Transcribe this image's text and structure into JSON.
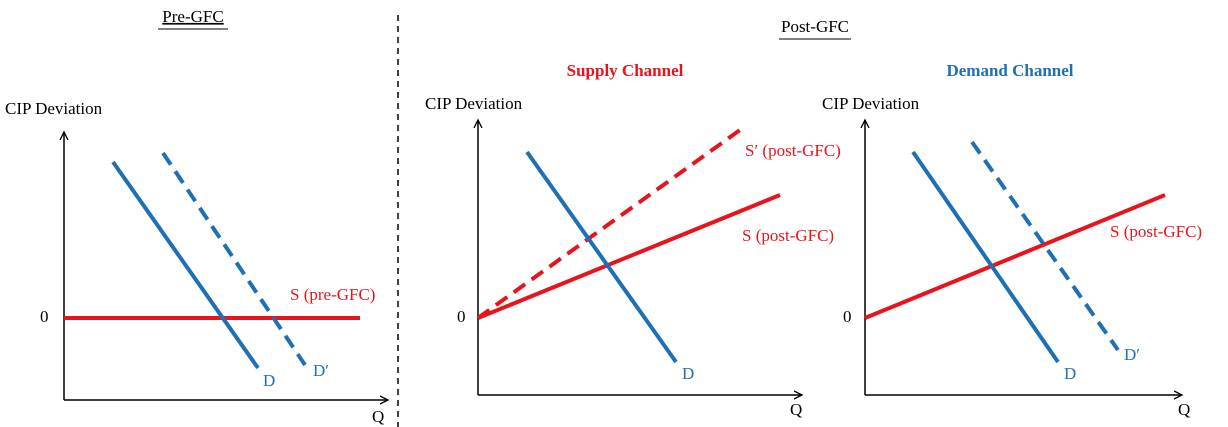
{
  "pre_gfc": {
    "title": "Pre-GFC",
    "y_axis_label": "CIP Deviation",
    "zero_label": "0",
    "x_axis_label": "Q",
    "supply_label": "S (pre-GFC)",
    "demand_label": "D",
    "demand_shift_label": "D′"
  },
  "post_gfc": {
    "title": "Post-GFC",
    "supply_channel": {
      "title": "Supply Channel",
      "y_axis_label": "CIP Deviation",
      "zero_label": "0",
      "x_axis_label": "Q",
      "supply_shift_label": "S′ (post-GFC)",
      "supply_label": "S (post-GFC)",
      "demand_label": "D"
    },
    "demand_channel": {
      "title": "Demand Channel",
      "y_axis_label": "CIP Deviation",
      "zero_label": "0",
      "x_axis_label": "Q",
      "supply_label": "S (post-GFC)",
      "demand_label": "D",
      "demand_shift_label": "D′"
    }
  }
}
